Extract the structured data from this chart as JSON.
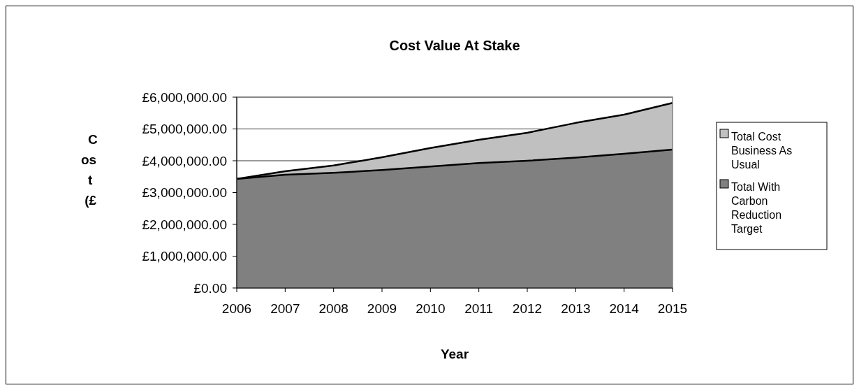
{
  "chart_data": {
    "type": "area",
    "title": "Cost Value At Stake",
    "xlabel": "Year",
    "ylabel": "Cost (£",
    "categories": [
      "2006",
      "2007",
      "2008",
      "2009",
      "2010",
      "2011",
      "2012",
      "2013",
      "2014",
      "2015"
    ],
    "series": [
      {
        "name": "Total Cost Business As Usual",
        "color": "#c0c0c0",
        "values": [
          3430000,
          3670000,
          3850000,
          4110000,
          4400000,
          4660000,
          4880000,
          5190000,
          5450000,
          5820000
        ]
      },
      {
        "name": "Total With Carbon Reduction Target",
        "color": "#808080",
        "values": [
          3430000,
          3560000,
          3620000,
          3710000,
          3820000,
          3930000,
          4000000,
          4100000,
          4220000,
          4350000
        ]
      }
    ],
    "ylim": [
      0,
      6000000
    ],
    "yticks": [
      {
        "value": 0,
        "label": "£0.00"
      },
      {
        "value": 1000000,
        "label": "£1,000,000.00"
      },
      {
        "value": 2000000,
        "label": "£2,000,000.00"
      },
      {
        "value": 3000000,
        "label": "£3,000,000.00"
      },
      {
        "value": 4000000,
        "label": "£4,000,000.00"
      },
      {
        "value": 5000000,
        "label": "£5,000,000.00"
      },
      {
        "value": 6000000,
        "label": "£6,000,000.00"
      }
    ],
    "grid": "y",
    "legend": "right"
  }
}
